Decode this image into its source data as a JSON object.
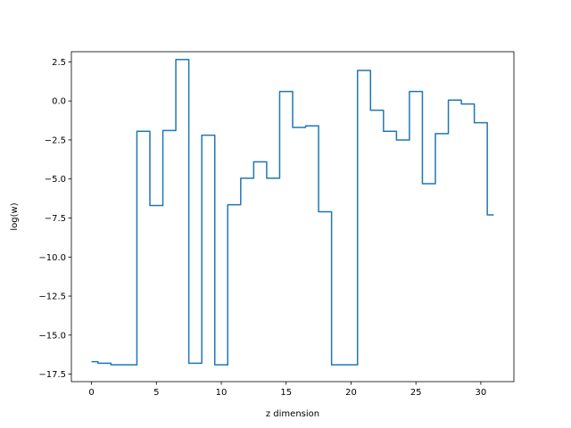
{
  "chart_data": {
    "type": "line",
    "drawstyle": "steps-mid",
    "title": "",
    "xlabel": "z dimension",
    "ylabel": "log(w)",
    "xlim": [
      -1.55,
      32.55
    ],
    "ylim": [
      -17.98,
      3.15
    ],
    "xticks": [
      0,
      5,
      10,
      15,
      20,
      25,
      30
    ],
    "xtick_labels": [
      "0",
      "5",
      "10",
      "15",
      "20",
      "25",
      "30"
    ],
    "yticks": [
      -17.5,
      -15.0,
      -12.5,
      -10.0,
      -7.5,
      -5.0,
      -2.5,
      0.0,
      2.5
    ],
    "ytick_labels": [
      "−17.5",
      "−15.0",
      "−12.5",
      "−10.0",
      "−7.5",
      "−5.0",
      "−2.5",
      "0.0",
      "2.5"
    ],
    "grid": false,
    "series": [
      {
        "color": "#1f77b4",
        "x": [
          0,
          1,
          2,
          3,
          4,
          5,
          6,
          7,
          8,
          9,
          10,
          11,
          12,
          13,
          14,
          15,
          16,
          17,
          18,
          19,
          20,
          21,
          22,
          23,
          24,
          25,
          26,
          27,
          28,
          29,
          30,
          31
        ],
        "y": [
          -16.7,
          -16.8,
          -16.9,
          -16.9,
          -1.95,
          -6.7,
          -1.9,
          2.65,
          -16.8,
          -2.2,
          -16.9,
          -6.65,
          -4.95,
          -3.9,
          -4.95,
          0.6,
          -1.7,
          -1.6,
          -7.1,
          -16.9,
          -16.9,
          1.95,
          -0.6,
          -1.95,
          -2.5,
          0.6,
          -5.3,
          -2.1,
          0.05,
          -0.2,
          -1.4,
          -7.3
        ]
      }
    ]
  }
}
